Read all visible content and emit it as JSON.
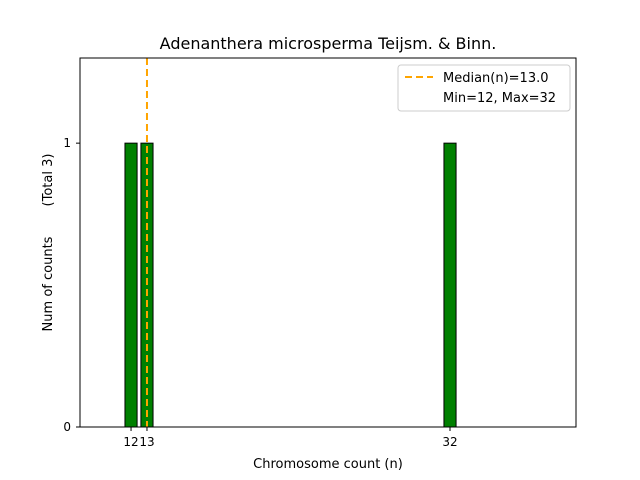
{
  "chart_data": {
    "type": "bar",
    "title": "Adenanthera microsperma Teijsm. & Binn.",
    "xlabel": "Chromosome count (n)",
    "ylabel": "Num of counts",
    "ylabel_note": "(Total 3)",
    "x_ticks": [
      12,
      13,
      32
    ],
    "y_ticks": [
      0,
      1
    ],
    "xlim": [
      8.8,
      39.9
    ],
    "ylim": [
      0,
      1.3
    ],
    "bars": [
      {
        "x": 12,
        "value": 1
      },
      {
        "x": 13,
        "value": 1
      },
      {
        "x": 32,
        "value": 1
      }
    ],
    "bar_color": "#008000",
    "median": {
      "value": 13.0,
      "label": "Median(n)=13.0",
      "color": "#ffa500"
    },
    "range_label": "Min=12, Max=32",
    "legend_position": "top-right",
    "grid": false
  }
}
